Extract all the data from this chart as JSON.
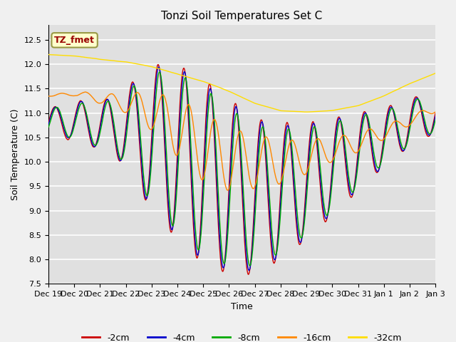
{
  "title": "Tonzi Soil Temperatures Set C",
  "xlabel": "Time",
  "ylabel": "Soil Temperature (C)",
  "ylim": [
    7.5,
    12.8
  ],
  "annotation": "TZ_fmet",
  "legend_labels": [
    "-2cm",
    "-4cm",
    "-8cm",
    "-16cm",
    "-32cm"
  ],
  "line_colors": [
    "#cc0000",
    "#0000cc",
    "#00aa00",
    "#ff8800",
    "#ffdd00"
  ],
  "x_tick_labels": [
    "Dec 19",
    "Dec 20",
    "Dec 21",
    "Dec 22",
    "Dec 23",
    "Dec 24",
    "Dec 25",
    "Dec 26",
    "Dec 27",
    "Dec 28",
    "Dec 29",
    "Dec 30",
    "Dec 31",
    "Jan 1",
    "Jan 2",
    "Jan 3"
  ],
  "background_color": "#e0e0e0",
  "grid_color": "#ffffff",
  "n_points": 960
}
